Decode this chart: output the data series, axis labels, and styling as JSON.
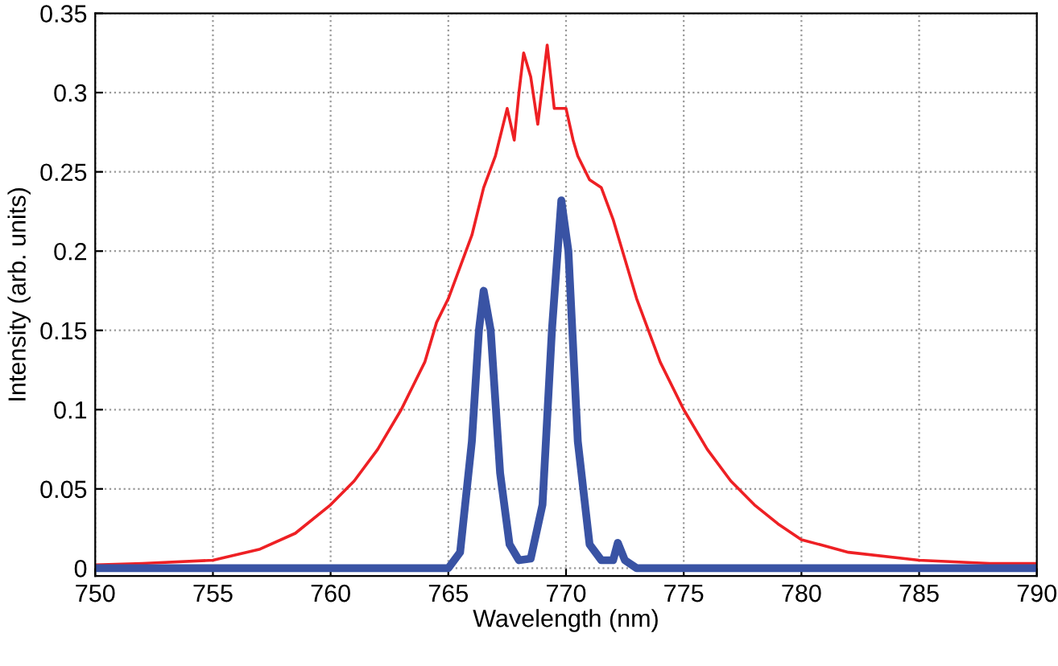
{
  "chart_data": {
    "type": "line",
    "xlabel": "Wavelength (nm)",
    "ylabel": "Intensity (arb. units)",
    "xlim": [
      750,
      790
    ],
    "ylim": [
      -0.005,
      0.35
    ],
    "xticks": [
      750,
      755,
      760,
      765,
      770,
      775,
      780,
      785,
      790
    ],
    "yticks": [
      0,
      0.05,
      0.1,
      0.15,
      0.2,
      0.25,
      0.3,
      0.35
    ],
    "grid": true,
    "legend": false,
    "series": [
      {
        "color": "#ee2024",
        "x": [
          750,
          752,
          755,
          757,
          758.5,
          760,
          761,
          762,
          763,
          764,
          764.5,
          765,
          765.5,
          766,
          766.5,
          767,
          767.5,
          767.8,
          768,
          768.2,
          768.5,
          768.8,
          769,
          769.2,
          769.5,
          770,
          770.3,
          770.5,
          771,
          771.5,
          772,
          772.5,
          773,
          774,
          775,
          776,
          777,
          778,
          779,
          780,
          782,
          785,
          788,
          790
        ],
        "values": [
          0.002,
          0.003,
          0.005,
          0.012,
          0.022,
          0.04,
          0.055,
          0.075,
          0.1,
          0.13,
          0.155,
          0.17,
          0.19,
          0.21,
          0.24,
          0.26,
          0.29,
          0.27,
          0.3,
          0.325,
          0.31,
          0.28,
          0.305,
          0.33,
          0.29,
          0.29,
          0.27,
          0.26,
          0.245,
          0.24,
          0.22,
          0.195,
          0.17,
          0.13,
          0.1,
          0.075,
          0.055,
          0.04,
          0.028,
          0.018,
          0.01,
          0.005,
          0.003,
          0.003
        ]
      },
      {
        "color": "#3953a4",
        "x": [
          750,
          755,
          760,
          765,
          765.5,
          766,
          766.3,
          766.5,
          766.8,
          767.2,
          767.6,
          768,
          768.5,
          769,
          769.4,
          769.8,
          770.1,
          770.5,
          771,
          771.5,
          772,
          772.2,
          772.5,
          773,
          780,
          790
        ],
        "values": [
          0,
          0,
          0,
          0,
          0.01,
          0.08,
          0.15,
          0.175,
          0.15,
          0.06,
          0.015,
          0.005,
          0.006,
          0.04,
          0.15,
          0.232,
          0.2,
          0.08,
          0.015,
          0.005,
          0.005,
          0.016,
          0.005,
          0,
          0,
          0
        ]
      }
    ]
  }
}
